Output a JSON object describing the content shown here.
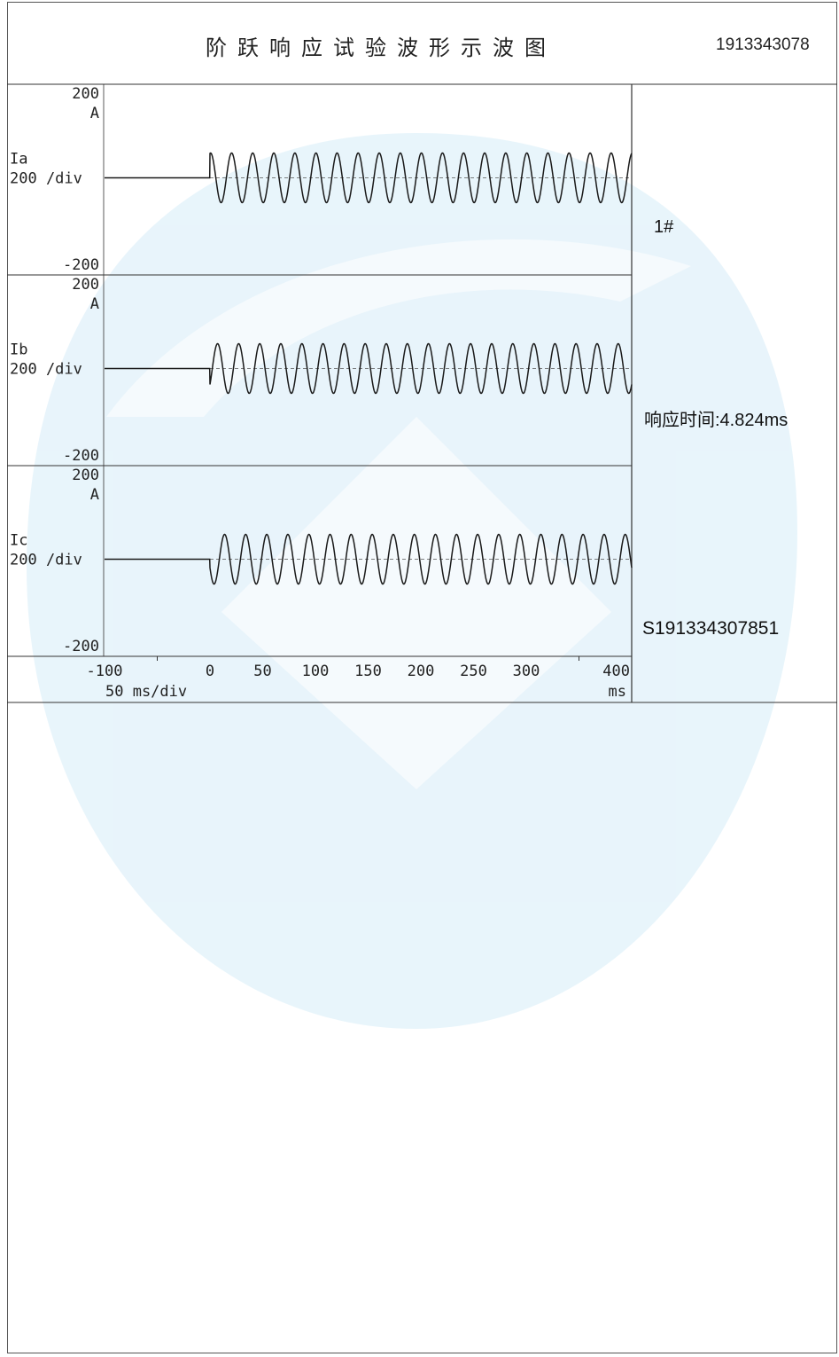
{
  "header": {
    "title": "阶跃响应试验波形示波图",
    "report_id": "1913343078"
  },
  "sidebar": {
    "device_label": "1#",
    "response_time": "响应时间:4.824ms",
    "serial": "S191334307851"
  },
  "colors": {
    "watermark": "#d6ecf8",
    "trace": "#1a1a1a",
    "grid": "#333333"
  },
  "chart_data": {
    "type": "line",
    "x_unit": "ms",
    "x_scale_label": "50 ms/div",
    "xlim": [
      -100,
      400
    ],
    "x_ticks": [
      "-100",
      "0",
      "50",
      "100",
      "150",
      "200",
      "250",
      "300",
      "400"
    ],
    "x_tick_values": [
      -100,
      0,
      50,
      100,
      150,
      200,
      250,
      300,
      400
    ],
    "step_time_ms": 0,
    "frequency_hz": 50,
    "panels": [
      {
        "name": "Ia",
        "ymax_label": "200",
        "unit": "A",
        "scale_label": "200 /div",
        "ymin_label": "-200",
        "ylim": [
          -200,
          200
        ],
        "pre_step": 0,
        "amplitude": 95,
        "phase_deg": 80
      },
      {
        "name": "Ib",
        "ymax_label": "200",
        "unit": "A",
        "scale_label": "200 /div",
        "ymin_label": "-200",
        "ylim": [
          -200,
          200
        ],
        "pre_step": 0,
        "amplitude": 95,
        "phase_deg": -40
      },
      {
        "name": "Ic",
        "ymax_label": "200",
        "unit": "A",
        "scale_label": "200 /div",
        "ymin_label": "-200",
        "ylim": [
          -200,
          200
        ],
        "pre_step": 0,
        "amplitude": 95,
        "phase_deg": 200
      }
    ]
  }
}
